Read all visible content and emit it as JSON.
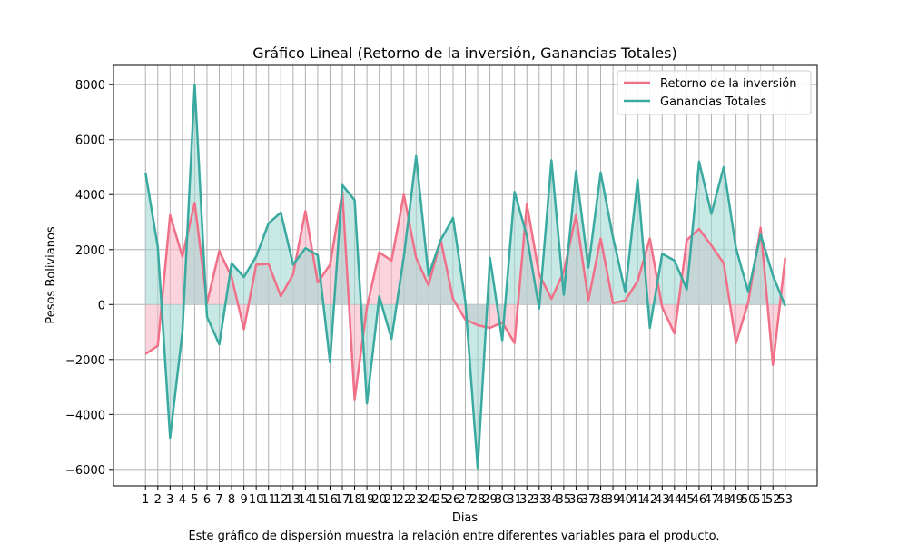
{
  "chart_data": {
    "type": "line",
    "title": "Gráfico Lineal (Retorno de la inversión, Ganancias Totales)",
    "xlabel": "Dias",
    "ylabel": "Pesos Bolivianos",
    "x": [
      1,
      2,
      3,
      4,
      5,
      6,
      7,
      8,
      9,
      10,
      11,
      12,
      13,
      14,
      15,
      16,
      17,
      18,
      19,
      20,
      21,
      22,
      23,
      24,
      25,
      26,
      27,
      28,
      29,
      30,
      31,
      32,
      33,
      34,
      35,
      36,
      37,
      38,
      39,
      40,
      41,
      42,
      43,
      44,
      45,
      46,
      47,
      48,
      49,
      50,
      51,
      52,
      53
    ],
    "xlim": [
      -1.6,
      55.6
    ],
    "ylim": [
      -6600,
      8700
    ],
    "yticks": [
      -6000,
      -4000,
      -2000,
      0,
      2000,
      4000,
      6000,
      8000
    ],
    "yticks_labels": [
      "−6000",
      "−4000",
      "−2000",
      "0",
      "2000",
      "4000",
      "6000",
      "8000"
    ],
    "grid": true,
    "legend_position": "top-right",
    "series": [
      {
        "name": "Retorno de la inversión",
        "color": "#f07088",
        "fill": "#f6b6c4",
        "values": [
          -1800,
          -1500,
          3250,
          1750,
          3700,
          50,
          1950,
          1000,
          -900,
          1450,
          1480,
          300,
          1100,
          3400,
          800,
          1450,
          4100,
          -3450,
          -100,
          1900,
          1600,
          4000,
          1700,
          700,
          2350,
          200,
          -550,
          -750,
          -850,
          -650,
          -1400,
          3650,
          1100,
          200,
          1200,
          3250,
          150,
          2400,
          50,
          150,
          850,
          2400,
          -100,
          -1050,
          2350,
          2750,
          2150,
          1500,
          -1400,
          100,
          2800,
          -2200,
          1700
        ]
      },
      {
        "name": "Ganancias Totales",
        "color": "#3aaaa0",
        "fill": "#a3d8d4",
        "values": [
          4800,
          2100,
          -4850,
          -1000,
          8000,
          -450,
          -1450,
          1500,
          1000,
          1750,
          2950,
          3350,
          1450,
          2050,
          1800,
          -2100,
          4350,
          3800,
          -3600,
          300,
          -1250,
          1750,
          5400,
          1050,
          2350,
          3150,
          100,
          -5950,
          1700,
          -1300,
          4100,
          2500,
          -150,
          5250,
          350,
          4850,
          1350,
          4800,
          2450,
          450,
          4550,
          -850,
          1850,
          1600,
          550,
          5200,
          3300,
          5000,
          2050,
          450,
          2550,
          1050,
          -50
        ]
      }
    ]
  },
  "caption": "Este gráfico de dispersión muestra la relación entre diferentes variables para el producto."
}
